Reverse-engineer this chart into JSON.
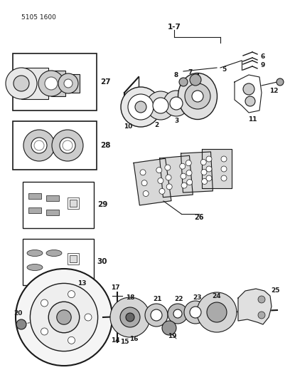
{
  "title_code": "5105 1600",
  "bg_color": "#ffffff",
  "line_color": "#1a1a1a",
  "figsize": [
    4.08,
    5.33
  ],
  "dpi": 100
}
